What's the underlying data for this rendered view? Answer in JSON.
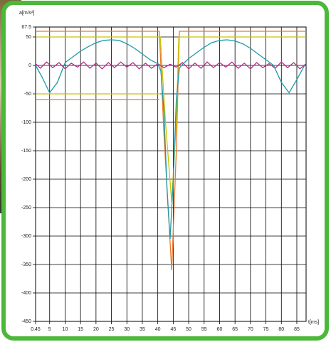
{
  "chart_data": {
    "type": "line",
    "y_label": "a[m/s²]",
    "x_label": "t[ms]",
    "xlim": [
      0.45,
      88
    ],
    "ylim": [
      -450,
      67.5
    ],
    "xticks": [
      0.45,
      5,
      10,
      15,
      20,
      25,
      30,
      35,
      40,
      45,
      50,
      55,
      60,
      65,
      70,
      75,
      80,
      85
    ],
    "yticks": [
      67.5,
      50,
      0,
      -50,
      -100,
      -150,
      -200,
      -250,
      -300,
      -350,
      -400,
      -450
    ],
    "grid": true,
    "series": [
      {
        "color": "#e8792e",
        "x": [
          0.45,
          40.5,
          42,
          44.5,
          46,
          47,
          88
        ],
        "values": [
          60,
          60,
          -120,
          -360,
          -150,
          60,
          60
        ]
      },
      {
        "color": "#e8792e",
        "x": [
          0.45,
          40.5,
          47,
          88
        ],
        "values": [
          -60,
          -60,
          null,
          -60
        ]
      },
      {
        "color": "#c9c400",
        "x": [
          0.45,
          40.8,
          42.5,
          44.5,
          46,
          46.8,
          88
        ],
        "values": [
          50,
          50,
          -100,
          -240,
          -100,
          50,
          50
        ]
      },
      {
        "color": "#c9c400",
        "x": [
          0.45,
          40.8,
          46.8,
          88
        ],
        "values": [
          -50,
          -50,
          null,
          -50
        ]
      },
      {
        "color": "#b0308a",
        "x": [
          0.45,
          2,
          4,
          6,
          8,
          10,
          12,
          14,
          16,
          18,
          20,
          22,
          24,
          26,
          28,
          30,
          32,
          34,
          36,
          38,
          40,
          42,
          44,
          46,
          48,
          50,
          52,
          54,
          56,
          58,
          60,
          62,
          64,
          66,
          68,
          70,
          72,
          74,
          76,
          78,
          80,
          82,
          84,
          86,
          88
        ],
        "values": [
          3,
          -5,
          6,
          -4,
          5,
          -6,
          4,
          -3,
          6,
          -5,
          4,
          -6,
          5,
          -4,
          6,
          -3,
          5,
          -6,
          4,
          -5,
          3,
          -4,
          2,
          -3,
          5,
          -6,
          4,
          -5,
          6,
          -4,
          5,
          -3,
          6,
          -5,
          4,
          -6,
          5,
          -4,
          3,
          -5,
          6,
          -4,
          5,
          -6,
          3
        ]
      },
      {
        "color": "#1b9aa6",
        "x": [
          0.45,
          2.5,
          5,
          7.5,
          10,
          12.5,
          15,
          17.5,
          20,
          22.5,
          25,
          27.5,
          30,
          32.5,
          35,
          37.5,
          40,
          41,
          42,
          43,
          44,
          45,
          46,
          47,
          48,
          50,
          52.5,
          55,
          57.5,
          60,
          62.5,
          65,
          67.5,
          70,
          72.5,
          75,
          77.5,
          80,
          82.5,
          85,
          87.5
        ],
        "values": [
          0,
          -20,
          -48,
          -30,
          5,
          15,
          25,
          33,
          40,
          44,
          45,
          44,
          38,
          30,
          20,
          10,
          3,
          -10,
          -80,
          -220,
          -305,
          -200,
          -60,
          -5,
          2,
          12,
          22,
          32,
          40,
          44,
          45,
          43,
          38,
          30,
          20,
          10,
          0,
          -30,
          -48,
          -25,
          0
        ]
      }
    ]
  }
}
